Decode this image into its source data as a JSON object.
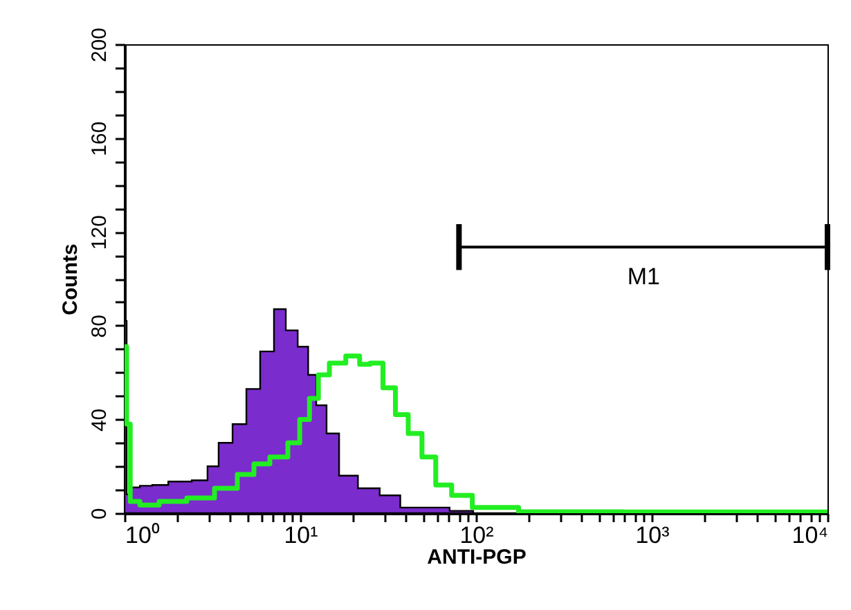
{
  "chart_data": {
    "type": "area",
    "xlabel": "ANTI-PGP",
    "ylabel": "Counts",
    "log": "x",
    "xlim": [
      1,
      10000
    ],
    "ylim": [
      0,
      200
    ],
    "xticks": [
      {
        "value": 1,
        "label": "10⁰"
      },
      {
        "value": 2,
        "label": null
      },
      {
        "value": 3,
        "label": null
      },
      {
        "value": 4,
        "label": null
      },
      {
        "value": 5,
        "label": null
      },
      {
        "value": 6,
        "label": null
      },
      {
        "value": 7,
        "label": null
      },
      {
        "value": 8,
        "label": null
      },
      {
        "value": 9,
        "label": null
      },
      {
        "value": 10,
        "label": "10¹"
      },
      {
        "value": 20,
        "label": null
      },
      {
        "value": 30,
        "label": null
      },
      {
        "value": 40,
        "label": null
      },
      {
        "value": 50,
        "label": null
      },
      {
        "value": 60,
        "label": null
      },
      {
        "value": 70,
        "label": null
      },
      {
        "value": 80,
        "label": null
      },
      {
        "value": 90,
        "label": null
      },
      {
        "value": 100,
        "label": "10²"
      },
      {
        "value": 200,
        "label": null
      },
      {
        "value": 300,
        "label": null
      },
      {
        "value": 400,
        "label": null
      },
      {
        "value": 500,
        "label": null
      },
      {
        "value": 600,
        "label": null
      },
      {
        "value": 700,
        "label": null
      },
      {
        "value": 800,
        "label": null
      },
      {
        "value": 900,
        "label": null
      },
      {
        "value": 1000,
        "label": "10³"
      },
      {
        "value": 2000,
        "label": null
      },
      {
        "value": 3000,
        "label": null
      },
      {
        "value": 4000,
        "label": null
      },
      {
        "value": 5000,
        "label": null
      },
      {
        "value": 6000,
        "label": null
      },
      {
        "value": 7000,
        "label": null
      },
      {
        "value": 8000,
        "label": null
      },
      {
        "value": 9000,
        "label": null
      },
      {
        "value": 10000,
        "label": "10⁴"
      }
    ],
    "yticks": [
      0,
      {
        "value": 10,
        "label": null
      },
      {
        "value": 20,
        "label": null
      },
      {
        "value": 30,
        "label": null
      },
      40,
      {
        "value": 50,
        "label": null
      },
      {
        "value": 60,
        "label": null
      },
      {
        "value": 70,
        "label": null
      },
      80,
      {
        "value": 90,
        "label": null
      },
      {
        "value": 100,
        "label": null
      },
      {
        "value": 110,
        "label": null
      },
      120,
      {
        "value": 130,
        "label": null
      },
      {
        "value": 140,
        "label": null
      },
      {
        "value": 150,
        "label": null
      },
      160,
      {
        "value": 170,
        "label": null
      },
      {
        "value": 180,
        "label": null
      },
      {
        "value": 190,
        "label": null
      },
      200
    ],
    "annotations": [
      {
        "text": "M1",
        "x": 900,
        "y": 113.5
      }
    ],
    "series": [
      {
        "type": "area",
        "color": "#7a2ccc",
        "x": [
          1,
          1.056,
          1.1,
          1.36,
          1.52,
          2.07,
          2.81,
          3.13,
          3.76,
          4.51,
          5.4,
          6.47,
          7.76,
          8.82,
          10.6,
          11.6,
          13.1,
          15.2,
          18.2,
          24.9,
          32.2,
          42.7,
          53.9,
          92.9,
          100,
          10000
        ],
        "values": [
          82,
          8,
          11,
          11.7,
          12,
          13.5,
          14,
          20,
          30,
          38,
          53,
          69,
          87,
          78,
          71,
          59,
          46,
          34,
          16,
          10.6,
          7.6,
          2.4,
          2.4,
          1,
          0,
          0
        ]
      },
      {
        "type": "line",
        "color": "#000000",
        "x": [
          80,
          10000
        ],
        "values": [
          113.5,
          113.5
        ]
      },
      {
        "type": "step",
        "color": "#22ee22",
        "x": [
          1,
          1.056,
          1.1,
          1.36,
          1.82,
          2.81,
          3.76,
          5.11,
          5.81,
          7.76,
          9.3,
          10.6,
          12,
          13.4,
          16,
          20.6,
          23,
          27.1,
          32.2,
          37.6,
          45,
          53.9,
          64.6,
          81.8,
          111,
          275,
          1695,
          10000
        ],
        "values": [
          71,
          38,
          5,
          3.5,
          5,
          6.5,
          10.6,
          16.5,
          21,
          24,
          30,
          40,
          49,
          59,
          64,
          67,
          63.5,
          64,
          53.5,
          42,
          34,
          24,
          12,
          7.6,
          2.4,
          0.6,
          0.5,
          0.5
        ]
      }
    ]
  }
}
